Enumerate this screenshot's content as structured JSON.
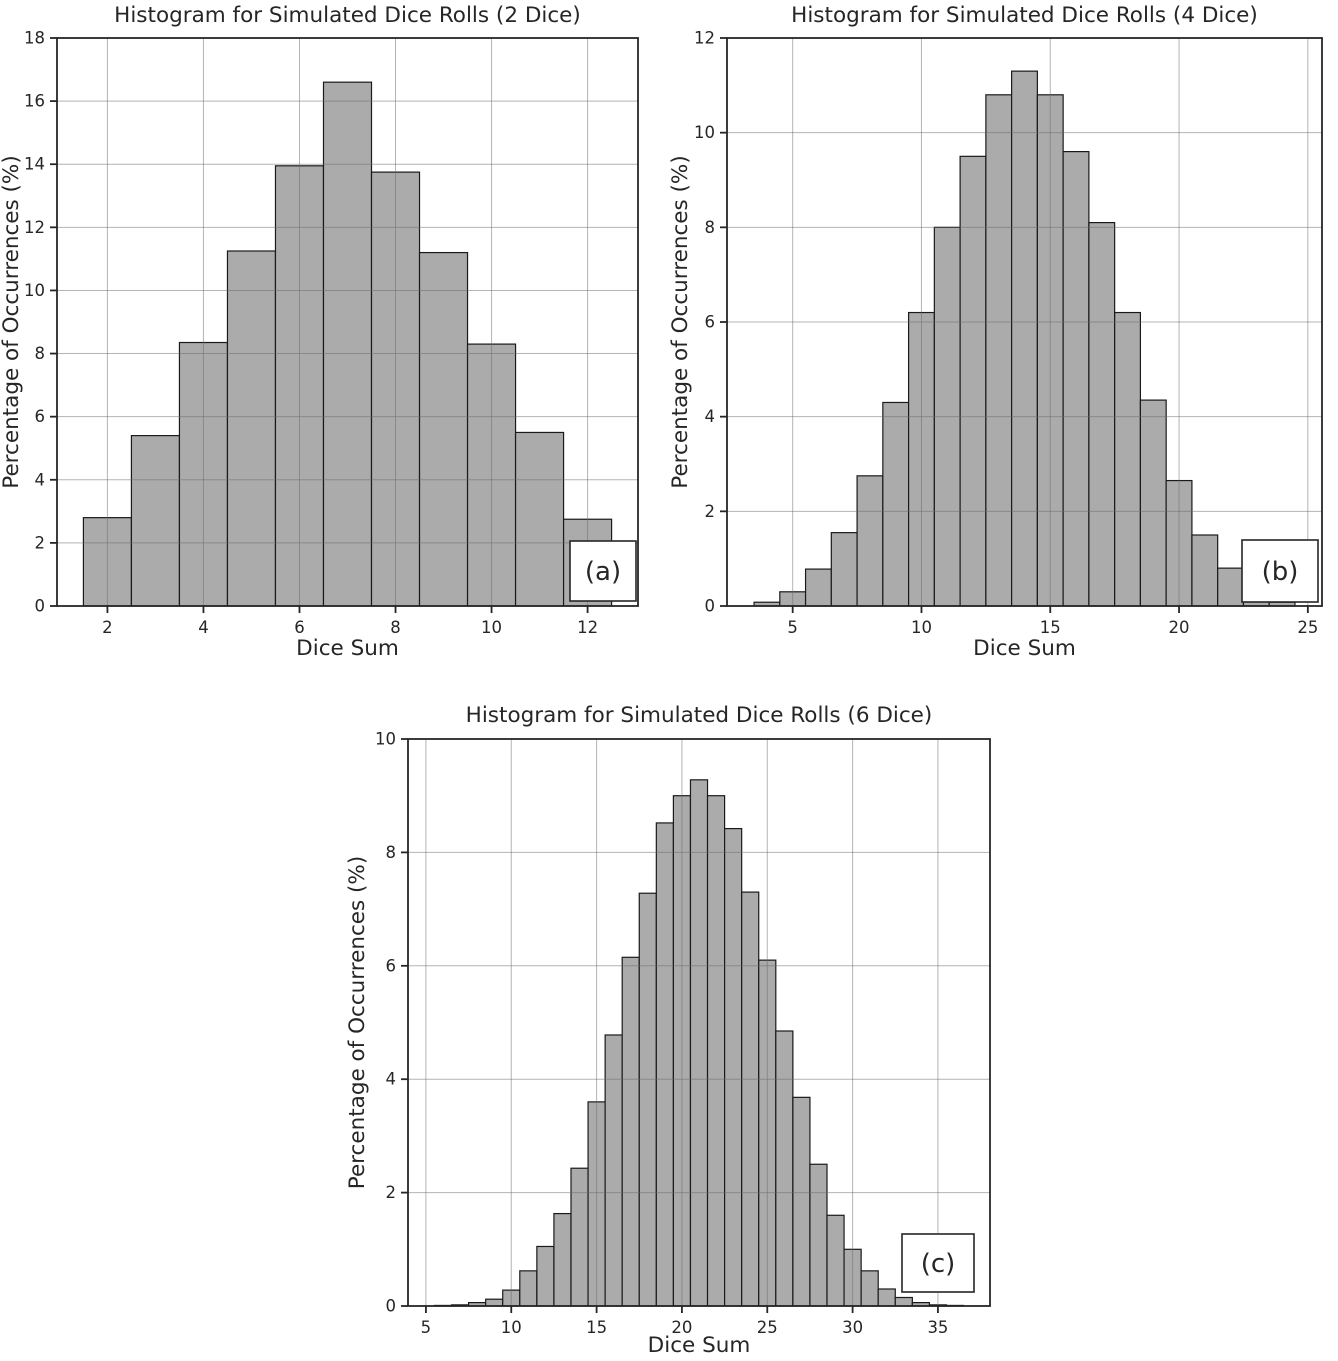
{
  "style": {
    "background": "#ffffff",
    "bar_fill": "#ababab",
    "bar_edge": "#1a1a1a",
    "grid_color": "#b0b0b0",
    "spine_color": "#262626",
    "text_color": "#262626"
  },
  "chart_data": [
    {
      "id": "a",
      "type": "bar",
      "title": "Histogram for Simulated Dice Rolls (2 Dice)",
      "xlabel": "Dice Sum",
      "ylabel": "Percentage of Occurrences (%)",
      "panel_label": "(a)",
      "bin_width": 1,
      "categories": [
        2,
        3,
        4,
        5,
        6,
        7,
        8,
        9,
        10,
        11,
        12
      ],
      "values": [
        2.8,
        5.4,
        8.35,
        11.25,
        13.95,
        16.6,
        13.75,
        11.2,
        8.3,
        5.5,
        2.75
      ],
      "xlim": [
        0.95,
        13.05
      ],
      "ylim": [
        0,
        18
      ],
      "xticks": [
        2,
        4,
        6,
        8,
        10,
        12
      ],
      "yticks": [
        0,
        2,
        4,
        6,
        8,
        10,
        12,
        14,
        16,
        18
      ],
      "grid": true,
      "legend": "none"
    },
    {
      "id": "b",
      "type": "bar",
      "title": "Histogram for Simulated Dice Rolls (4 Dice)",
      "xlabel": "Dice Sum",
      "ylabel": "Percentage of Occurrences (%)",
      "panel_label": "(b)",
      "bin_width": 1,
      "categories": [
        4,
        5,
        6,
        7,
        8,
        9,
        10,
        11,
        12,
        13,
        14,
        15,
        16,
        17,
        18,
        19,
        20,
        21,
        22,
        23,
        24
      ],
      "values": [
        0.08,
        0.3,
        0.78,
        1.55,
        2.75,
        4.3,
        6.2,
        8.0,
        9.5,
        10.8,
        11.3,
        10.8,
        9.6,
        8.1,
        6.2,
        4.35,
        2.65,
        1.5,
        0.8,
        0.3,
        0.08
      ],
      "xlim": [
        2.45,
        25.55
      ],
      "ylim": [
        0,
        12
      ],
      "xticks": [
        5,
        10,
        15,
        20,
        25
      ],
      "yticks": [
        0,
        2,
        4,
        6,
        8,
        10,
        12
      ],
      "grid": true,
      "legend": "none"
    },
    {
      "id": "c",
      "type": "bar",
      "title": "Histogram for Simulated Dice Rolls (6 Dice)",
      "xlabel": "Dice Sum",
      "ylabel": "Percentage of Occurrences (%)",
      "panel_label": "(c)",
      "bin_width": 1,
      "categories": [
        6,
        7,
        8,
        9,
        10,
        11,
        12,
        13,
        14,
        15,
        16,
        17,
        18,
        19,
        20,
        21,
        22,
        23,
        24,
        25,
        26,
        27,
        28,
        29,
        30,
        31,
        32,
        33,
        34,
        35,
        36
      ],
      "values": [
        0.01,
        0.02,
        0.06,
        0.12,
        0.28,
        0.62,
        1.05,
        1.63,
        2.43,
        3.6,
        4.78,
        6.15,
        7.28,
        8.52,
        9.0,
        9.28,
        9.0,
        8.42,
        7.3,
        6.1,
        4.85,
        3.68,
        2.5,
        1.6,
        1.0,
        0.62,
        0.3,
        0.15,
        0.06,
        0.02,
        0.01
      ],
      "xlim": [
        3.95,
        38.05
      ],
      "ylim": [
        0,
        10
      ],
      "xticks": [
        5,
        10,
        15,
        20,
        25,
        30,
        35
      ],
      "yticks": [
        0,
        2,
        4,
        6,
        8,
        10
      ],
      "grid": true,
      "legend": "none"
    }
  ]
}
